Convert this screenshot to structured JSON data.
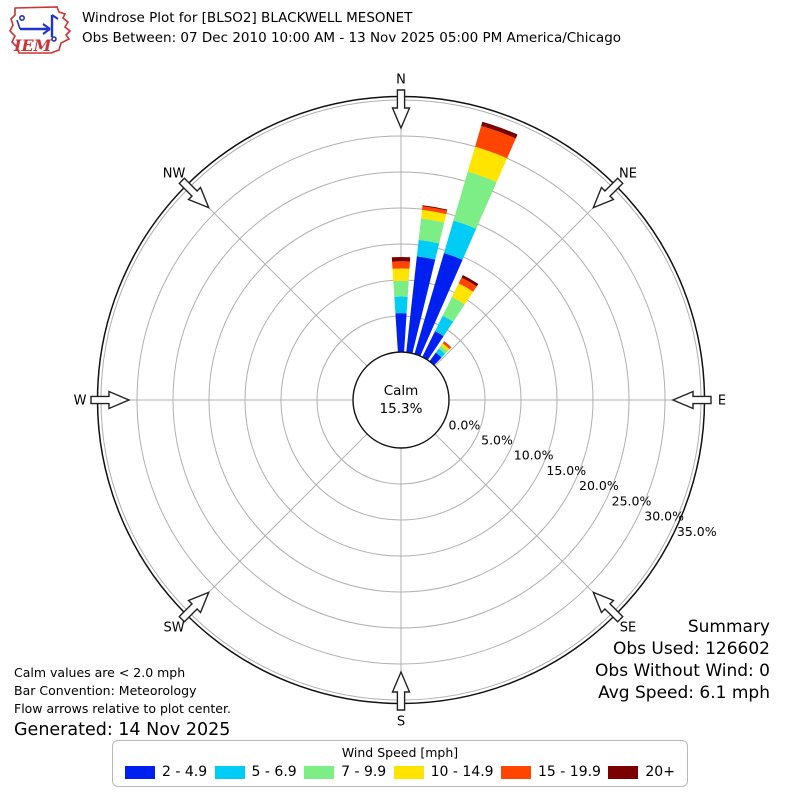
{
  "header": {
    "title": "Windrose Plot for [BLSO2] BLACKWELL MESONET",
    "subtitle": "Obs Between: 07 Dec 2010 10:00 AM - 13 Nov 2025 05:00 PM America/Chicago",
    "logo_text": "IEM"
  },
  "plot": {
    "compass_labels": [
      "N",
      "NE",
      "E",
      "SE",
      "S",
      "SW",
      "W",
      "NW"
    ],
    "calm_label": "Calm",
    "calm_value": "15.3%",
    "ring_labels": [
      "0.0%",
      "5.0%",
      "10.0%",
      "15.0%",
      "20.0%",
      "25.0%",
      "30.0%",
      "35.0%"
    ]
  },
  "chart_data": {
    "type": "windrose-stacked-polar-bar",
    "title": "Windrose Plot for [BLSO2] BLACKWELL MESONET",
    "units": "percent frequency by wind speed bin [mph]",
    "bar_convention": "Meteorology (bars point toward direction wind blows from)",
    "radial_axis_percent": [
      0,
      5,
      10,
      15,
      20,
      25,
      30,
      35
    ],
    "rlim": [
      0,
      35
    ],
    "calm_percent": 15.3,
    "speed_bins": [
      {
        "label": "2 - 4.9",
        "color": "#0020f0"
      },
      {
        "label": "5 - 6.9",
        "color": "#00ccf6"
      },
      {
        "label": "7 - 9.9",
        "color": "#7cee85"
      },
      {
        "label": "10 - 14.9",
        "color": "#ffe400"
      },
      {
        "label": "15 - 19.9",
        "color": "#ff4500"
      },
      {
        "label": "20+",
        "color": "#7a0000"
      }
    ],
    "directions": [
      {
        "deg": 0,
        "label": "N",
        "values": [
          5.4,
          2.3,
          2.2,
          1.7,
          1.0,
          0.6
        ]
      },
      {
        "deg": 10,
        "label": "NNE",
        "values": [
          13.4,
          2.3,
          3.0,
          1.2,
          0.5,
          0.15
        ]
      },
      {
        "deg": 20,
        "label": "NNE",
        "values": [
          14.6,
          4.7,
          7.1,
          3.6,
          3.0,
          0.6
        ]
      },
      {
        "deg": 30,
        "label": "NE",
        "values": [
          4.0,
          2.4,
          2.9,
          2.1,
          0.9,
          0.4
        ]
      },
      {
        "deg": 40,
        "label": "NE",
        "values": [
          1.5,
          0.7,
          0.5,
          0.4,
          0.3,
          0.05
        ]
      }
    ],
    "all_other_direction_bins_percent": 0,
    "legend_position": "bottom"
  },
  "summary": {
    "title": "Summary",
    "obs_used": "Obs Used: 126602",
    "obs_without_wind": "Obs Without Wind: 0",
    "avg_speed": "Avg Speed: 6.1 mph"
  },
  "footnotes": {
    "line1": "Calm values are < 2.0 mph",
    "line2": "Bar Convention: Meteorology",
    "line3": "Flow arrows relative to plot center.",
    "generated": "Generated: 14 Nov 2025"
  },
  "legend": {
    "title": "Wind Speed [mph]"
  }
}
